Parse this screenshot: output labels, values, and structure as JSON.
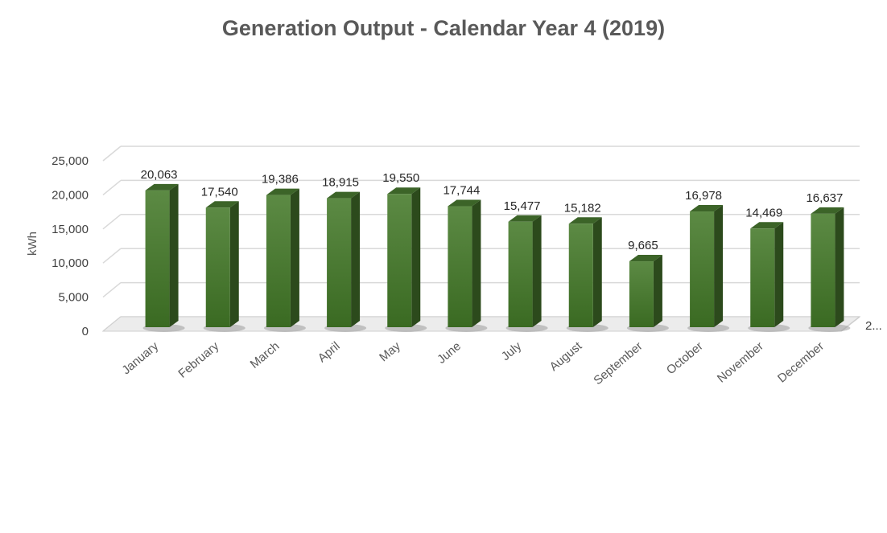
{
  "chart_data": {
    "type": "bar",
    "title": "Generation Output - Calendar Year 4 (2019)",
    "ylabel": "kWh",
    "xlabel": "",
    "categories": [
      "January",
      "February",
      "March",
      "April",
      "May",
      "June",
      "July",
      "August",
      "September",
      "October",
      "November",
      "December"
    ],
    "values": [
      20063,
      17540,
      19386,
      18915,
      19550,
      17744,
      15477,
      15182,
      9665,
      16978,
      14469,
      16637
    ],
    "data_labels": [
      "20,063",
      "17,540",
      "19,386",
      "18,915",
      "19,550",
      "17,744",
      "15,477",
      "15,182",
      "9,665",
      "16,978",
      "14,469",
      "16,637"
    ],
    "ylim": [
      0,
      25000
    ],
    "yticks": [
      0,
      5000,
      10000,
      15000,
      20000,
      25000
    ],
    "ytick_labels": [
      "0",
      "5,000",
      "10,000",
      "15,000",
      "20,000",
      "25,000"
    ],
    "depth_axis_label": "2...",
    "grid": true,
    "legend": "none",
    "style": "3d-column",
    "colors": {
      "bar_front": "#4a7a32",
      "bar_side": "#2c4a1c",
      "bar_top": "#3c6428",
      "grid": "#d9d9d9",
      "title": "#595959"
    }
  }
}
